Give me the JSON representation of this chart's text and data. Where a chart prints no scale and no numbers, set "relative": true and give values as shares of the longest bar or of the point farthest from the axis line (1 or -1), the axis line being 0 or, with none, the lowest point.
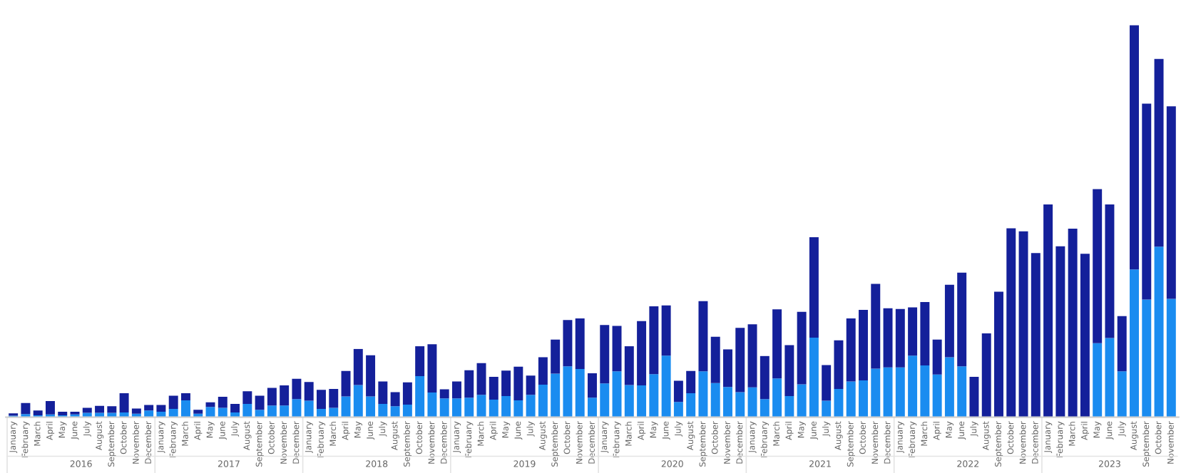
{
  "chart_data": {
    "type": "bar",
    "stacked": true,
    "relative": true,
    "legend": false,
    "grid": false,
    "categories": [
      "January",
      "February",
      "March",
      "April",
      "May",
      "June",
      "July",
      "August",
      "September",
      "October",
      "November",
      "December",
      "January",
      "February",
      "March",
      "April",
      "May",
      "June",
      "July",
      "August",
      "September",
      "October",
      "November",
      "December",
      "January",
      "February",
      "March",
      "April",
      "May",
      "June",
      "July",
      "August",
      "September",
      "October",
      "November",
      "December",
      "January",
      "February",
      "March",
      "April",
      "May",
      "June",
      "July",
      "August",
      "September",
      "October",
      "November",
      "December",
      "January",
      "February",
      "March",
      "April",
      "May",
      "June",
      "July",
      "August",
      "September",
      "October",
      "November",
      "December",
      "January",
      "February",
      "March",
      "April",
      "May",
      "June",
      "July",
      "August",
      "September",
      "October",
      "November",
      "December",
      "January",
      "February",
      "March",
      "April",
      "May",
      "June",
      "July",
      "August",
      "September",
      "October",
      "November",
      "December",
      "January",
      "February",
      "March",
      "April",
      "May",
      "June",
      "July",
      "August",
      "September",
      "October",
      "November"
    ],
    "annotations": [
      "2016",
      "2017",
      "2018",
      "2019",
      "2020",
      "2021",
      "2022",
      "2023"
    ],
    "series": [
      {
        "color": "#1a8cf0",
        "values": [
          0.004,
          0.008,
          0.005,
          0.007,
          0.005,
          0.007,
          0.011,
          0.011,
          0.011,
          0.012,
          0.009,
          0.017,
          0.014,
          0.021,
          0.043,
          0.009,
          0.026,
          0.024,
          0.012,
          0.034,
          0.019,
          0.03,
          0.03,
          0.046,
          0.042,
          0.021,
          0.024,
          0.053,
          0.082,
          0.053,
          0.034,
          0.028,
          0.032,
          0.105,
          0.063,
          0.048,
          0.048,
          0.05,
          0.057,
          0.045,
          0.054,
          0.043,
          0.057,
          0.083,
          0.111,
          0.13,
          0.123,
          0.05,
          0.086,
          0.117,
          0.082,
          0.081,
          0.11,
          0.157,
          0.039,
          0.061,
          0.117,
          0.087,
          0.077,
          0.064,
          0.076,
          0.046,
          0.099,
          0.054,
          0.084,
          0.203,
          0.042,
          0.072,
          0.091,
          0.094,
          0.124,
          0.127,
          0.127,
          0.157,
          0.132,
          0.109,
          0.153,
          0.13,
          0,
          0,
          0,
          0,
          0,
          0,
          0,
          0,
          0,
          0,
          0.189,
          0.202,
          0.117,
          0.377,
          0.3,
          0.435,
          0.302
        ]
      },
      {
        "color": "#14209a",
        "values": [
          0.006,
          0.028,
          0.012,
          0.034,
          0.009,
          0.007,
          0.013,
          0.018,
          0.017,
          0.049,
          0.013,
          0.014,
          0.017,
          0.034,
          0.018,
          0.01,
          0.012,
          0.028,
          0.022,
          0.032,
          0.036,
          0.045,
          0.051,
          0.052,
          0.048,
          0.049,
          0.048,
          0.065,
          0.092,
          0.105,
          0.057,
          0.036,
          0.057,
          0.076,
          0.123,
          0.023,
          0.043,
          0.07,
          0.081,
          0.058,
          0.065,
          0.086,
          0.049,
          0.07,
          0.087,
          0.118,
          0.129,
          0.062,
          0.149,
          0.116,
          0.099,
          0.164,
          0.173,
          0.128,
          0.054,
          0.057,
          0.179,
          0.118,
          0.096,
          0.164,
          0.161,
          0.11,
          0.176,
          0.13,
          0.185,
          0.256,
          0.091,
          0.124,
          0.161,
          0.18,
          0.216,
          0.151,
          0.149,
          0.123,
          0.162,
          0.089,
          0.185,
          0.239,
          0.103,
          0.214,
          0.32,
          0.482,
          0.474,
          0.419,
          0.543,
          0.436,
          0.481,
          0.417,
          0.393,
          0.341,
          0.141,
          0.623,
          0.5,
          0.479,
          0.491
        ]
      }
    ]
  }
}
